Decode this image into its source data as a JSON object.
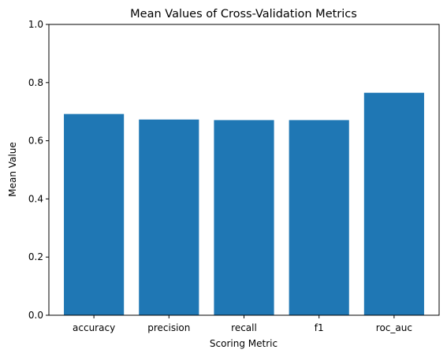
{
  "chart_data": {
    "type": "bar",
    "title": "Mean Values of Cross-Validation Metrics",
    "xlabel": "Scoring Metric",
    "ylabel": "Mean Value",
    "categories": [
      "accuracy",
      "precision",
      "recall",
      "f1",
      "roc_auc"
    ],
    "values": [
      0.692,
      0.673,
      0.671,
      0.671,
      0.765
    ],
    "ylim": [
      0,
      1
    ],
    "yticks": [
      "0.0",
      "0.2",
      "0.4",
      "0.6",
      "0.8",
      "1.0"
    ],
    "grid": false,
    "bar_color": "#1f77b4"
  }
}
